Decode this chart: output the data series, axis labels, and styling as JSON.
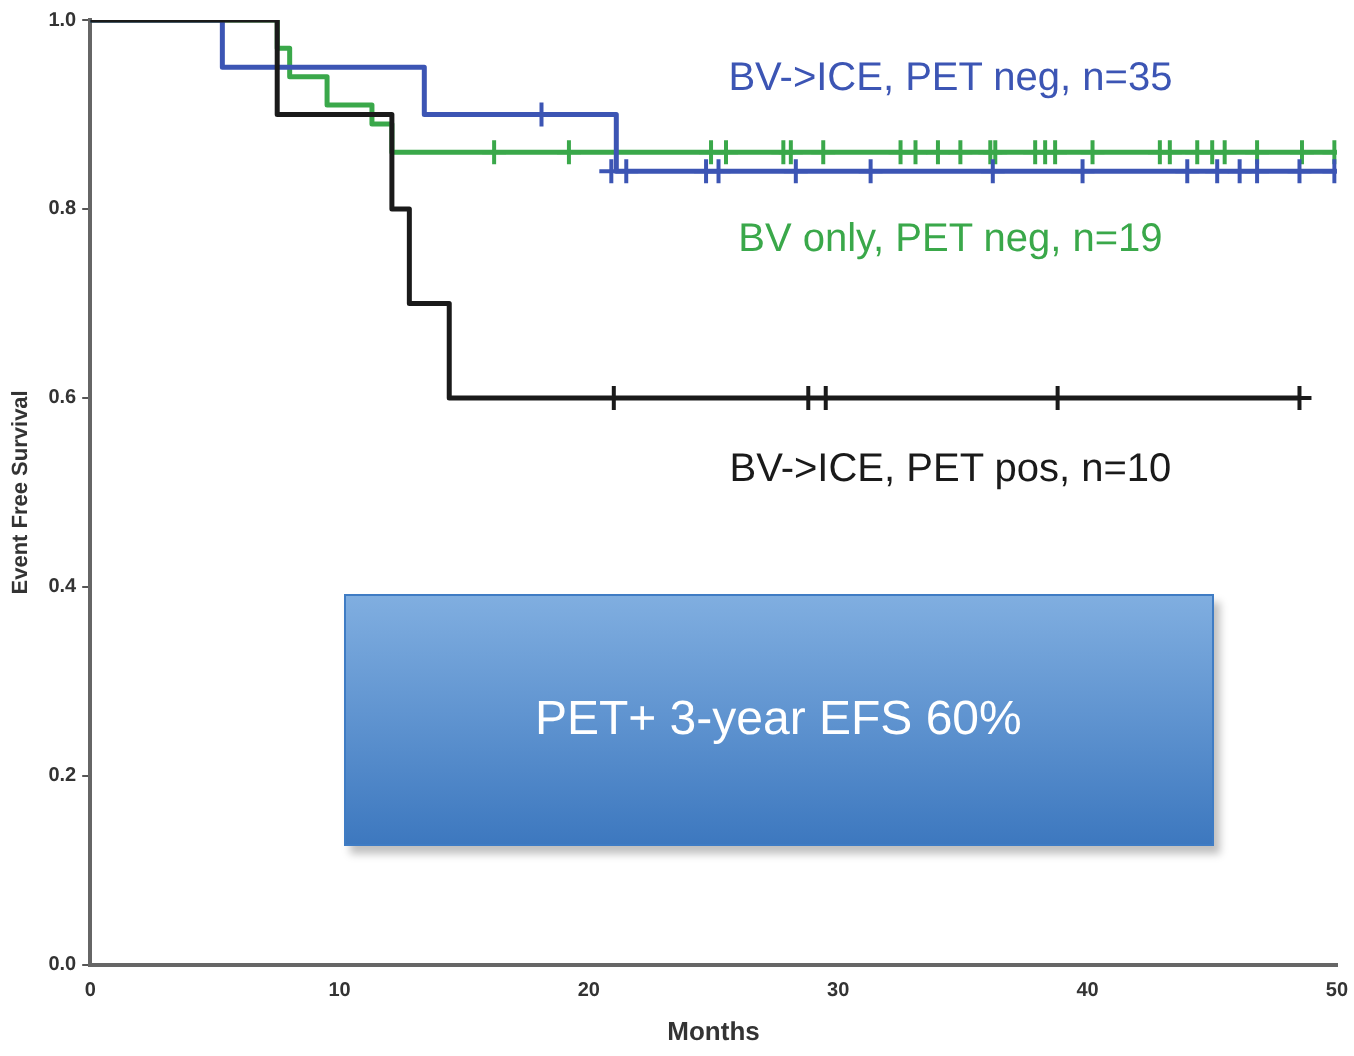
{
  "chart_data": {
    "type": "step",
    "xlabel": "Months",
    "ylabel": "Event Free Survival",
    "xlim": [
      0,
      50
    ],
    "xticks": [
      0,
      10,
      20,
      30,
      40,
      50
    ],
    "ylim": [
      0,
      1
    ],
    "yticks": [
      {
        "value": 0,
        "label": "0.0"
      },
      {
        "value": 0.2,
        "label": "0.2"
      },
      {
        "value": 0.4,
        "label": "0.4"
      },
      {
        "value": 0.6,
        "label": "0.6"
      },
      {
        "value": 0.8,
        "label": "0.8"
      },
      {
        "value": 1,
        "label": "1.0"
      }
    ],
    "grid": false,
    "legend": false,
    "marker": "none",
    "line_style": "solid",
    "series": [
      {
        "name": "BV->ICE, PET pos, n=10",
        "color": "#1a1a1a",
        "x": [
          0,
          7.5,
          12.1,
          12.8,
          14.4,
          48.5
        ],
        "values": [
          1,
          0.9,
          0.8,
          0.7,
          0.6,
          0.6
        ]
      },
      {
        "name": "BV->ICE, PET neg, n=35",
        "color": "#3c55b4",
        "x": [
          0,
          5.3,
          13.4,
          21.1,
          50
        ],
        "values": [
          1,
          0.95,
          0.9,
          0.84,
          0.84
        ]
      },
      {
        "name": "BV only, PET neg, n=19",
        "color": "#3aa84a",
        "x": [
          0,
          7.5,
          8.0,
          9.5,
          11.3,
          12.1,
          50
        ],
        "values": [
          1,
          0.97,
          0.94,
          0.91,
          0.89,
          0.86,
          0.86
        ]
      },
      {
        "type": "scatter",
        "marker": "cross",
        "color": "#1a1a1a",
        "x": [
          21,
          28.8,
          29.5,
          38.8,
          48.5
        ],
        "values": [
          0.6,
          0.6,
          0.6,
          0.6,
          0.6
        ]
      },
      {
        "type": "scatter",
        "marker": "cross",
        "color": "#3c55b4",
        "x": [
          18.1,
          20.9,
          21.5,
          24.7,
          25.2,
          28.3,
          31.3,
          36.2,
          39.8,
          44.0,
          45.2,
          46.1,
          46.8,
          48.5,
          49.9
        ],
        "values": [
          0.9,
          0.84,
          0.84,
          0.84,
          0.84,
          0.84,
          0.84,
          0.84,
          0.84,
          0.84,
          0.84,
          0.84,
          0.84,
          0.84,
          0.84
        ]
      },
      {
        "type": "scatter",
        "marker": "cross",
        "color": "#3aa84a",
        "x": [
          16.2,
          19.2,
          24.9,
          25.5,
          27.8,
          28.1,
          29.4,
          32.5,
          33.1,
          34.0,
          34.9,
          36.1,
          36.3,
          37.9,
          38.3,
          38.7,
          40.2,
          42.9,
          43.3,
          44.4,
          45.0,
          45.5,
          46.8,
          48.6,
          49.9
        ],
        "values": [
          0.86,
          0.86,
          0.86,
          0.86,
          0.86,
          0.86,
          0.86,
          0.86,
          0.86,
          0.86,
          0.86,
          0.86,
          0.86,
          0.86,
          0.86,
          0.86,
          0.86,
          0.86,
          0.86,
          0.86,
          0.86,
          0.86,
          0.86,
          0.86,
          0.86
        ]
      }
    ],
    "annotations": [
      "PET+ 3-year EFS 60%"
    ]
  }
}
